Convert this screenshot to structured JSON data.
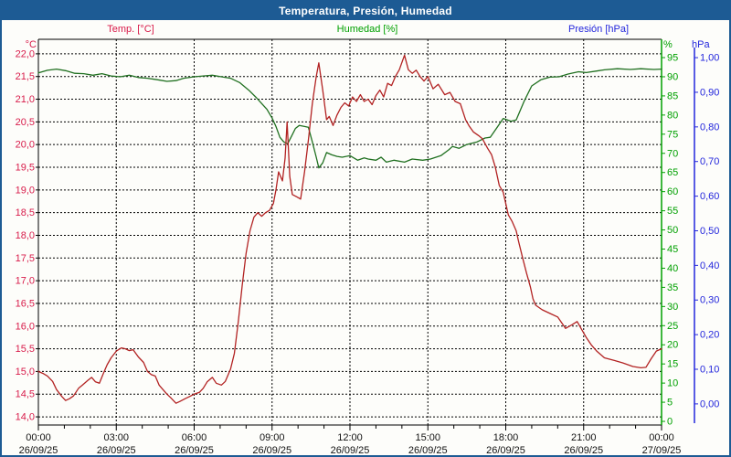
{
  "window": {
    "title": "Temperatura, Presión, Humedad"
  },
  "colors": {
    "chrome": "#1d5b94",
    "plot_border": "#000000",
    "grid": "#000000",
    "temp_text": "#d81b4a",
    "temp_line": "#b22222",
    "humidity_text": "#00a000",
    "humidity_line": "#207020",
    "pressure_text": "#2326dc",
    "x_text": "#111111",
    "background": "#fdfdfa"
  },
  "header_labels": {
    "temp": "Temp. [°C]",
    "humidity": "Humedad [%]",
    "pressure": "Presión [hPa]"
  },
  "unit_labels": {
    "temp": "°C",
    "humidity": "%",
    "pressure": "hPa"
  },
  "chart_data": {
    "type": "line",
    "title": "Temperatura, Presión, Humedad",
    "grid": {
      "horizontal_dashed": true,
      "vertical_dashed": true
    },
    "x_axis": {
      "range_hours": [
        0,
        24
      ],
      "major_tick_hours": 3,
      "minor_tick_hours": 1,
      "tick_labels": [
        {
          "time": "00:00",
          "date": "26/09/25"
        },
        {
          "time": "03:00",
          "date": "26/09/25"
        },
        {
          "time": "06:00",
          "date": "26/09/25"
        },
        {
          "time": "09:00",
          "date": "26/09/25"
        },
        {
          "time": "12:00",
          "date": "26/09/25"
        },
        {
          "time": "15:00",
          "date": "26/09/25"
        },
        {
          "time": "18:00",
          "date": "26/09/25"
        },
        {
          "time": "21:00",
          "date": "26/09/25"
        },
        {
          "time": "00:00",
          "date": "27/09/25"
        }
      ]
    },
    "axes": {
      "temp": {
        "label": "Temp. [°C]",
        "unit": "°C",
        "side": "left",
        "range": [
          13.82,
          22.32
        ],
        "tick_values": [
          22.0,
          21.5,
          21.0,
          20.5,
          20.0,
          19.5,
          19.0,
          18.5,
          18.0,
          17.5,
          17.0,
          16.5,
          16.0,
          15.5,
          15.0,
          14.5,
          14.0
        ],
        "tick_labels": [
          "22,0",
          "21,5",
          "21,0",
          "20,5",
          "20,0",
          "19,5",
          "19,0",
          "18,5",
          "18,0",
          "17,5",
          "17,0",
          "16,5",
          "16,0",
          "15,5",
          "15,0",
          "14,5",
          "14,0"
        ]
      },
      "humidity": {
        "label": "Humedad [%]",
        "unit": "%",
        "side": "right",
        "range": [
          -0.95,
          99.78
        ],
        "tick_values": [
          95,
          90,
          85,
          80,
          75,
          70,
          65,
          60,
          55,
          50,
          45,
          40,
          35,
          30,
          25,
          20,
          15,
          10,
          5,
          0
        ],
        "tick_labels": [
          "95",
          "90",
          "85",
          "80",
          "75",
          "70",
          "65",
          "60",
          "55",
          "50",
          "45",
          "40",
          "35",
          "30",
          "25",
          "20",
          "15",
          "10",
          "5",
          "0"
        ]
      },
      "pressure": {
        "label": "Presión [hPa]",
        "unit": "hPa",
        "side": "far-right",
        "range": [
          -0.061,
          1.053
        ],
        "tick_values": [
          1.0,
          0.9,
          0.8,
          0.7,
          0.6,
          0.5,
          0.4,
          0.3,
          0.2,
          0.1,
          0.0
        ],
        "tick_labels": [
          "1,00",
          "0,90",
          "0,80",
          "0,70",
          "0,60",
          "0,50",
          "0,40",
          "0,30",
          "0,20",
          "0,10",
          "0,00"
        ]
      }
    },
    "series": [
      {
        "name": "Humedad [%]",
        "axis": "humidity",
        "color": "#207020",
        "points": [
          [
            0,
            91.0
          ],
          [
            0.35,
            91.7
          ],
          [
            0.7,
            92.0
          ],
          [
            1.05,
            91.6
          ],
          [
            1.4,
            90.9
          ],
          [
            1.75,
            90.8
          ],
          [
            2.1,
            90.4
          ],
          [
            2.45,
            90.8
          ],
          [
            2.8,
            90.2
          ],
          [
            3.15,
            90.0
          ],
          [
            3.5,
            90.4
          ],
          [
            3.85,
            89.8
          ],
          [
            4.2,
            89.6
          ],
          [
            4.6,
            89.2
          ],
          [
            4.95,
            88.8
          ],
          [
            5.3,
            89.0
          ],
          [
            5.6,
            89.6
          ],
          [
            6.0,
            90.0
          ],
          [
            6.35,
            90.2
          ],
          [
            6.7,
            90.4
          ],
          [
            7.05,
            90.0
          ],
          [
            7.4,
            89.6
          ],
          [
            7.75,
            88.5
          ],
          [
            8.1,
            86.5
          ],
          [
            8.4,
            84.5
          ],
          [
            8.6,
            83.0
          ],
          [
            8.8,
            81.5
          ],
          [
            9.0,
            79.2
          ],
          [
            9.15,
            77.0
          ],
          [
            9.3,
            74.2
          ],
          [
            9.45,
            73.0
          ],
          [
            9.6,
            72.5
          ],
          [
            9.75,
            74.5
          ],
          [
            9.9,
            76.5
          ],
          [
            10.05,
            77.3
          ],
          [
            10.25,
            77.0
          ],
          [
            10.4,
            76.8
          ],
          [
            10.55,
            73.0
          ],
          [
            10.7,
            69.0
          ],
          [
            10.8,
            66.2
          ],
          [
            10.95,
            67.5
          ],
          [
            11.1,
            70.2
          ],
          [
            11.3,
            69.6
          ],
          [
            11.5,
            69.2
          ],
          [
            11.7,
            69.0
          ],
          [
            12.0,
            69.4
          ],
          [
            12.3,
            68.2
          ],
          [
            12.55,
            68.8
          ],
          [
            12.7,
            68.5
          ],
          [
            13.0,
            68.2
          ],
          [
            13.2,
            69.0
          ],
          [
            13.4,
            67.7
          ],
          [
            13.7,
            68.2
          ],
          [
            14.1,
            67.7
          ],
          [
            14.4,
            68.5
          ],
          [
            14.8,
            68.2
          ],
          [
            15.1,
            68.5
          ],
          [
            15.5,
            69.4
          ],
          [
            15.8,
            70.9
          ],
          [
            15.95,
            71.8
          ],
          [
            16.2,
            71.3
          ],
          [
            16.5,
            72.3
          ],
          [
            16.9,
            73.0
          ],
          [
            17.2,
            74.0
          ],
          [
            17.4,
            74.2
          ],
          [
            17.7,
            77.1
          ],
          [
            17.9,
            79.1
          ],
          [
            18.2,
            78.4
          ],
          [
            18.4,
            78.7
          ],
          [
            18.7,
            83.5
          ],
          [
            19.0,
            87.6
          ],
          [
            19.35,
            89.2
          ],
          [
            19.7,
            89.9
          ],
          [
            20.05,
            90.0
          ],
          [
            20.4,
            90.7
          ],
          [
            20.8,
            91.3
          ],
          [
            21.1,
            91.1
          ],
          [
            21.5,
            91.5
          ],
          [
            21.8,
            91.8
          ],
          [
            22.3,
            92.1
          ],
          [
            22.8,
            91.9
          ],
          [
            23.2,
            92.1
          ],
          [
            23.7,
            91.9
          ],
          [
            24,
            92.0
          ]
        ]
      },
      {
        "name": "Temp. [°C]",
        "axis": "temp",
        "color": "#b22222",
        "points": [
          [
            0,
            15.0
          ],
          [
            0.2,
            14.95
          ],
          [
            0.35,
            14.9
          ],
          [
            0.55,
            14.78
          ],
          [
            0.7,
            14.6
          ],
          [
            0.9,
            14.45
          ],
          [
            1.05,
            14.36
          ],
          [
            1.2,
            14.4
          ],
          [
            1.35,
            14.46
          ],
          [
            1.55,
            14.63
          ],
          [
            1.7,
            14.7
          ],
          [
            1.9,
            14.8
          ],
          [
            2.05,
            14.87
          ],
          [
            2.2,
            14.77
          ],
          [
            2.35,
            14.74
          ],
          [
            2.5,
            14.95
          ],
          [
            2.65,
            15.15
          ],
          [
            2.8,
            15.3
          ],
          [
            3.0,
            15.45
          ],
          [
            3.2,
            15.52
          ],
          [
            3.35,
            15.5
          ],
          [
            3.5,
            15.46
          ],
          [
            3.65,
            15.48
          ],
          [
            3.85,
            15.32
          ],
          [
            4.05,
            15.2
          ],
          [
            4.2,
            15.0
          ],
          [
            4.35,
            14.93
          ],
          [
            4.5,
            14.9
          ],
          [
            4.65,
            14.7
          ],
          [
            4.8,
            14.6
          ],
          [
            4.95,
            14.5
          ],
          [
            5.1,
            14.42
          ],
          [
            5.3,
            14.3
          ],
          [
            5.45,
            14.34
          ],
          [
            5.65,
            14.4
          ],
          [
            5.8,
            14.44
          ],
          [
            6.0,
            14.5
          ],
          [
            6.2,
            14.54
          ],
          [
            6.35,
            14.63
          ],
          [
            6.5,
            14.77
          ],
          [
            6.7,
            14.87
          ],
          [
            6.85,
            14.74
          ],
          [
            7.05,
            14.7
          ],
          [
            7.2,
            14.78
          ],
          [
            7.4,
            15.05
          ],
          [
            7.55,
            15.4
          ],
          [
            7.7,
            16.1
          ],
          [
            7.85,
            16.9
          ],
          [
            8.0,
            17.6
          ],
          [
            8.15,
            18.1
          ],
          [
            8.3,
            18.4
          ],
          [
            8.45,
            18.5
          ],
          [
            8.6,
            18.42
          ],
          [
            8.75,
            18.5
          ],
          [
            8.9,
            18.55
          ],
          [
            9.05,
            18.7
          ],
          [
            9.15,
            19.0
          ],
          [
            9.25,
            19.4
          ],
          [
            9.4,
            19.2
          ],
          [
            9.5,
            19.7
          ],
          [
            9.58,
            20.5
          ],
          [
            9.68,
            19.3
          ],
          [
            9.78,
            18.9
          ],
          [
            9.95,
            18.85
          ],
          [
            10.1,
            18.8
          ],
          [
            10.25,
            19.4
          ],
          [
            10.4,
            20.1
          ],
          [
            10.55,
            20.9
          ],
          [
            10.7,
            21.5
          ],
          [
            10.8,
            21.8
          ],
          [
            10.95,
            21.2
          ],
          [
            11.1,
            20.55
          ],
          [
            11.2,
            20.62
          ],
          [
            11.35,
            20.42
          ],
          [
            11.5,
            20.65
          ],
          [
            11.65,
            20.82
          ],
          [
            11.8,
            20.92
          ],
          [
            11.95,
            20.85
          ],
          [
            12.1,
            21.05
          ],
          [
            12.25,
            20.95
          ],
          [
            12.4,
            21.1
          ],
          [
            12.55,
            20.95
          ],
          [
            12.7,
            21.0
          ],
          [
            12.85,
            20.88
          ],
          [
            13.0,
            21.08
          ],
          [
            13.15,
            21.2
          ],
          [
            13.3,
            21.05
          ],
          [
            13.45,
            21.35
          ],
          [
            13.6,
            21.3
          ],
          [
            13.75,
            21.5
          ],
          [
            13.9,
            21.65
          ],
          [
            14.1,
            21.97
          ],
          [
            14.25,
            21.65
          ],
          [
            14.4,
            21.57
          ],
          [
            14.55,
            21.64
          ],
          [
            14.7,
            21.5
          ],
          [
            14.85,
            21.4
          ],
          [
            15.0,
            21.5
          ],
          [
            15.2,
            21.23
          ],
          [
            15.4,
            21.33
          ],
          [
            15.65,
            21.1
          ],
          [
            15.85,
            21.15
          ],
          [
            16.05,
            20.95
          ],
          [
            16.25,
            20.9
          ],
          [
            16.45,
            20.55
          ],
          [
            16.6,
            20.4
          ],
          [
            16.75,
            20.28
          ],
          [
            16.95,
            20.2
          ],
          [
            17.1,
            20.13
          ],
          [
            17.3,
            19.92
          ],
          [
            17.45,
            19.78
          ],
          [
            17.6,
            19.5
          ],
          [
            17.75,
            19.1
          ],
          [
            17.9,
            18.95
          ],
          [
            18.0,
            18.7
          ],
          [
            18.1,
            18.45
          ],
          [
            18.25,
            18.3
          ],
          [
            18.4,
            18.1
          ],
          [
            18.5,
            17.85
          ],
          [
            18.65,
            17.5
          ],
          [
            18.8,
            17.17
          ],
          [
            18.95,
            16.86
          ],
          [
            19.05,
            16.6
          ],
          [
            19.15,
            16.46
          ],
          [
            19.4,
            16.36
          ],
          [
            19.7,
            16.28
          ],
          [
            20.0,
            16.2
          ],
          [
            20.3,
            15.95
          ],
          [
            20.55,
            16.03
          ],
          [
            20.75,
            16.1
          ],
          [
            20.9,
            15.95
          ],
          [
            21.1,
            15.75
          ],
          [
            21.3,
            15.58
          ],
          [
            21.5,
            15.45
          ],
          [
            21.8,
            15.3
          ],
          [
            22.2,
            15.24
          ],
          [
            22.5,
            15.19
          ],
          [
            22.9,
            15.11
          ],
          [
            23.2,
            15.08
          ],
          [
            23.4,
            15.09
          ],
          [
            23.6,
            15.28
          ],
          [
            23.8,
            15.45
          ],
          [
            24,
            15.5
          ]
        ]
      },
      {
        "name": "Presión [hPa]",
        "axis": "pressure",
        "color": "#2326dc",
        "points": []
      }
    ]
  }
}
